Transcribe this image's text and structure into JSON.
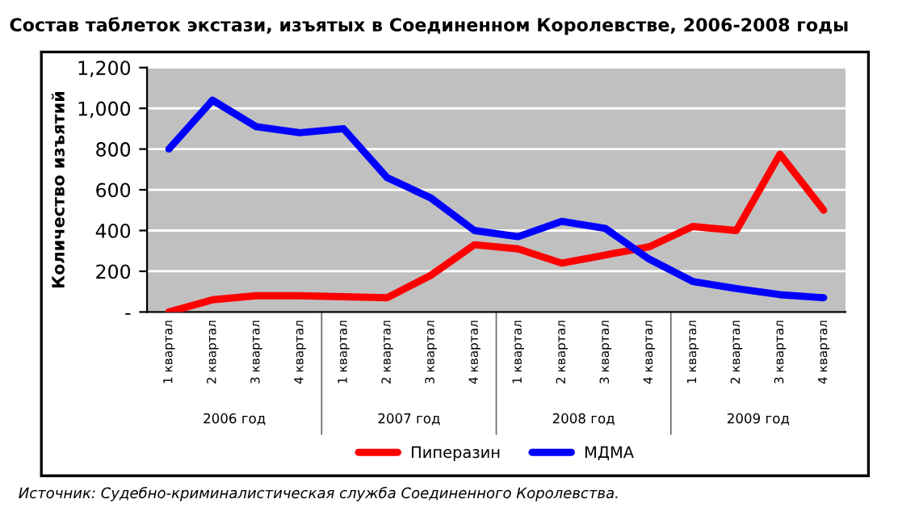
{
  "chart_data": {
    "type": "line",
    "title": "Состав таблеток экстази, изъятых в Соединенном Королевстве, 2006-2008 годы",
    "ylabel": "Количество изъятий",
    "categories": [
      "1 квартал",
      "2 квартал",
      "3 квартал",
      "4 квартал",
      "1 квартал",
      "2 квартал",
      "3 квартал",
      "4 квартал",
      "1 квартал",
      "2 квартал",
      "3 квартал",
      "4 квартал",
      "1 квартал",
      "2 квартал",
      "3 квартал",
      "4 квартал"
    ],
    "series": [
      {
        "name": "Пиперазин",
        "color": "#ff0000",
        "values": [
          0,
          60,
          80,
          80,
          75,
          70,
          180,
          330,
          310,
          240,
          280,
          320,
          420,
          400,
          775,
          500
        ]
      },
      {
        "name": "МДМА",
        "color": "#0000ff",
        "values": [
          800,
          1040,
          910,
          880,
          900,
          660,
          560,
          400,
          370,
          445,
          410,
          260,
          150,
          115,
          85,
          70
        ]
      }
    ],
    "ylim": [
      0,
      1200
    ],
    "yticks": [
      {
        "value": 0,
        "label": "-"
      },
      200,
      400,
      600,
      800,
      {
        "value": 1000,
        "label": "1,000"
      },
      {
        "value": 1200,
        "label": "1,200"
      }
    ],
    "grid": "y",
    "legend": "bottom",
    "annotations": [
      "2006 год",
      "2007 год",
      "2008 год",
      "2009 год",
      "Источник: Судебно-криминалистическая служба Соединенного Королевства."
    ]
  }
}
